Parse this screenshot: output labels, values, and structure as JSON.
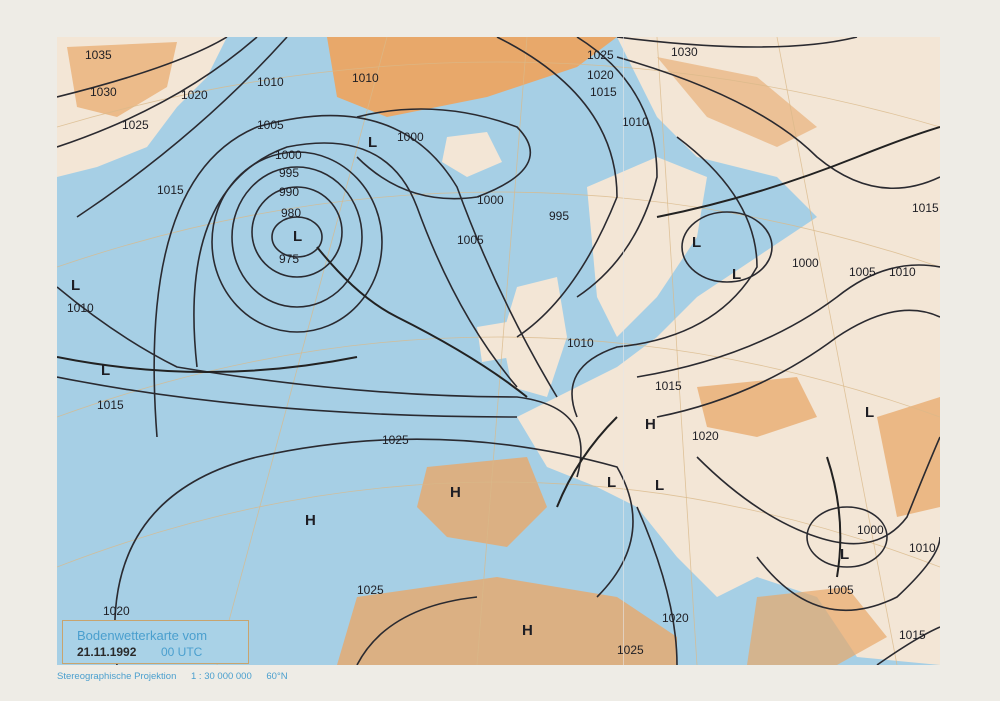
{
  "legend": {
    "title": "Bodenwetterkarte vom",
    "date": "21.11.1992",
    "time": "00 UTC"
  },
  "footer": {
    "projection": "Stereographische Projektion",
    "scale": "1 : 30 000 000",
    "latitude": "60°N"
  },
  "colors": {
    "sea": "#a6cfe5",
    "land": "#e8a86a",
    "lowland": "#f6e8d8",
    "isobar": "#2a2a30"
  },
  "isobar_labels": [
    "1035",
    "1030",
    "1025",
    "1020",
    "1015",
    "1010",
    "1005",
    "1000",
    "995",
    "990",
    "980",
    "975",
    "1010",
    "1000",
    "1000",
    "1005",
    "995",
    "1025",
    "1020",
    "1015",
    "1030",
    "1010",
    "1010",
    "1015",
    "1025",
    "1010",
    "1015",
    "1020",
    "1000",
    "1005",
    "1010",
    "1015",
    "1000",
    "1010",
    "1005",
    "1025",
    "1020",
    "1025",
    "1020",
    "1015"
  ],
  "pressure_centers": [
    "H",
    "H",
    "H",
    "H",
    "L",
    "L",
    "L",
    "L",
    "L",
    "L",
    "L",
    "L",
    "L",
    "L"
  ]
}
